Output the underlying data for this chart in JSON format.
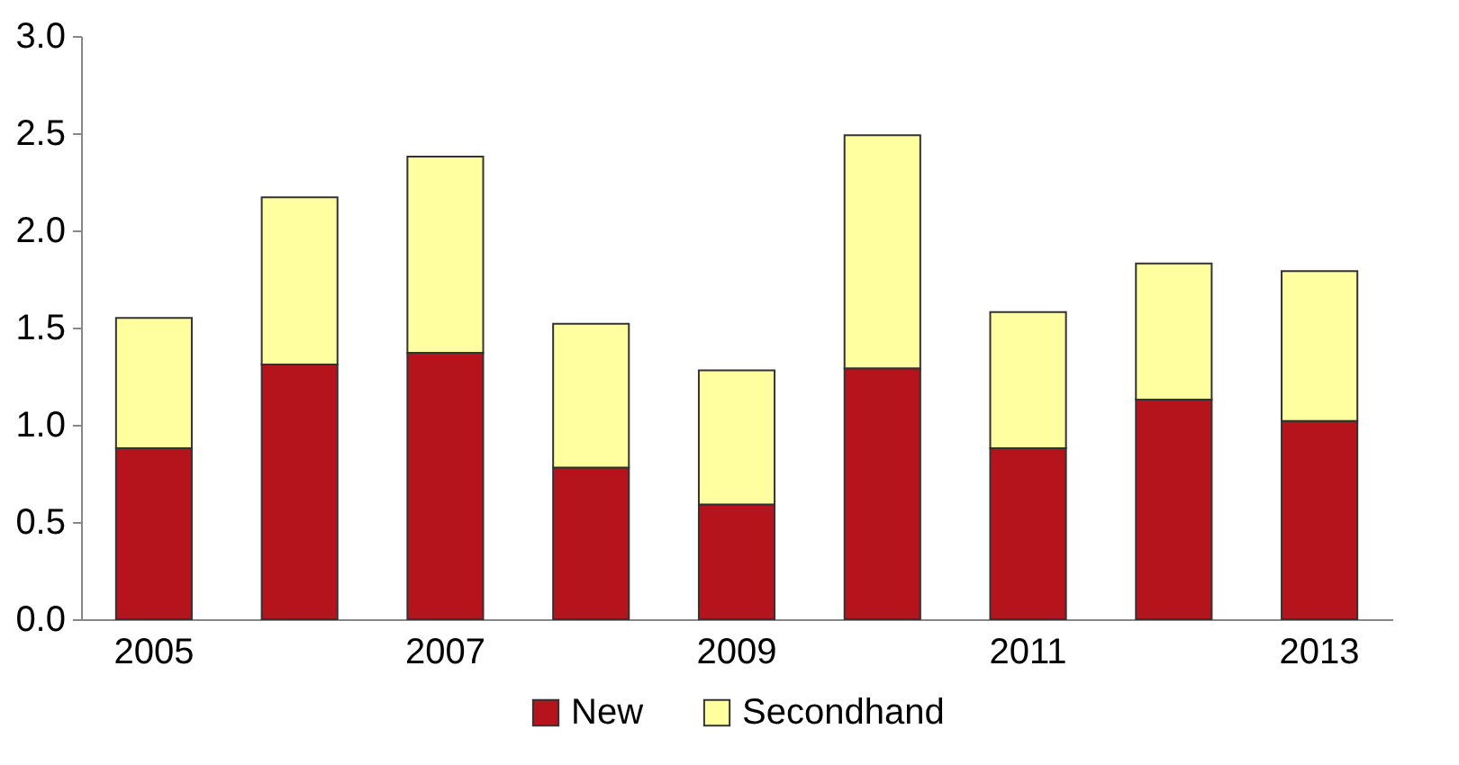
{
  "chart_data": {
    "type": "bar",
    "stacked": true,
    "categories": [
      "2005",
      null,
      "2007",
      null,
      "2009",
      null,
      "2011",
      null,
      "2013"
    ],
    "series": [
      {
        "name": "New",
        "color": "#b5141c",
        "values": [
          0.88,
          1.31,
          1.37,
          0.78,
          0.59,
          1.29,
          0.88,
          1.13,
          1.02
        ]
      },
      {
        "name": "Secondhand",
        "color": "#ffffa0",
        "values": [
          0.67,
          0.86,
          1.01,
          0.74,
          0.69,
          1.2,
          0.7,
          0.7,
          0.77
        ]
      }
    ],
    "ylim": [
      0,
      3
    ],
    "yticks": [
      {
        "value": 0,
        "label": "0.0"
      },
      0.5,
      {
        "value": 1,
        "label": "1.0"
      },
      1.5,
      {
        "value": 2,
        "label": "2.0"
      },
      2.5,
      {
        "value": 3,
        "label": "3.0"
      }
    ],
    "legend": "bottom",
    "grid": false
  }
}
